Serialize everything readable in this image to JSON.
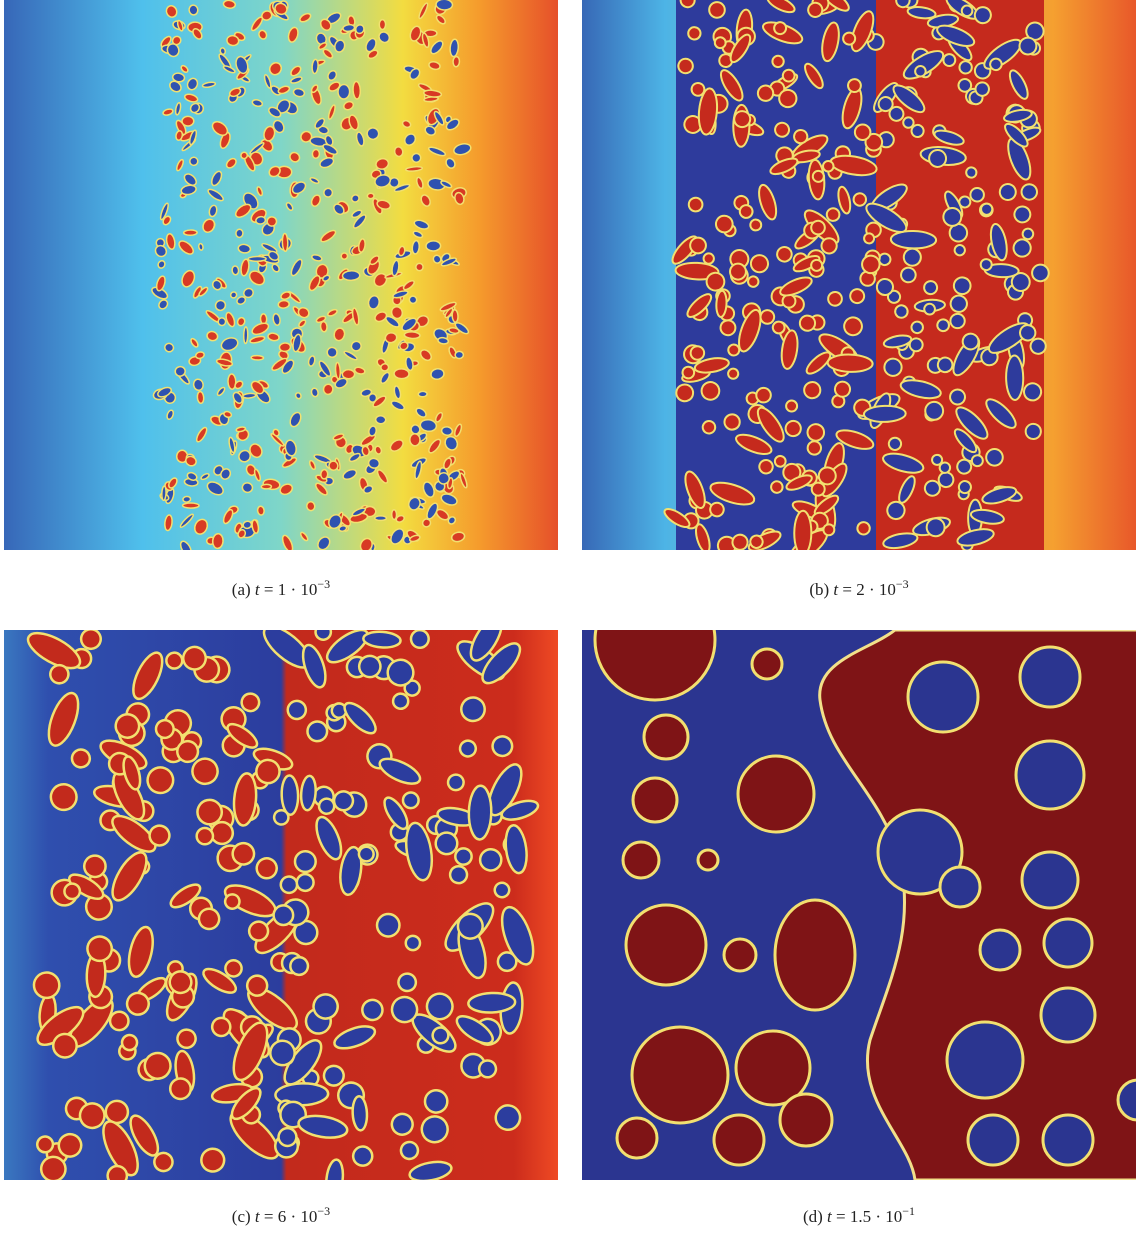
{
  "figure": {
    "panels": [
      {
        "label": "(a)",
        "var": "t",
        "rhs": "= 1 · 10",
        "exponent": "−3"
      },
      {
        "label": "(b)",
        "var": "t",
        "rhs": "= 2 · 10",
        "exponent": "−3"
      },
      {
        "label": "(c)",
        "var": "t",
        "rhs": "= 6 · 10",
        "exponent": "−3"
      },
      {
        "label": "(d)",
        "var": "t",
        "rhs": "= 1.5 · 10",
        "exponent": "−1"
      }
    ]
  }
}
